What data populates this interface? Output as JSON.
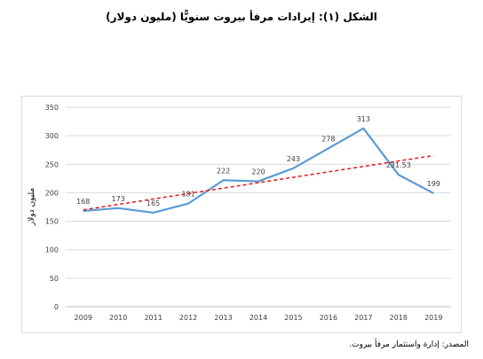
{
  "title": "الشكل (١): إيرادات مرفأ بيروت سنويًّا (مليون دولار)",
  "source": "المصدر: إدارة واستثمار مرفأ بيروت.",
  "chart_data": {
    "type": "line",
    "title": "",
    "xlabel": "",
    "ylabel": "مليون دولار",
    "categories": [
      "2009",
      "2010",
      "2011",
      "2012",
      "2013",
      "2014",
      "2015",
      "2016",
      "2017",
      "2018",
      "2019"
    ],
    "series": [
      {
        "values": [
          168,
          173,
          165,
          181,
          222,
          220,
          243,
          278,
          313,
          231.53,
          199
        ],
        "labels": [
          "168",
          "173",
          "165",
          "181",
          "222",
          "220",
          "243",
          "278",
          "313",
          "231.53",
          "199"
        ],
        "color": "#5b9bd5"
      }
    ],
    "trendline": {
      "type": "linear",
      "color": "#e31a1c",
      "style": "dashed"
    },
    "ylim": [
      0,
      350
    ],
    "yticks": [
      0,
      50,
      100,
      150,
      200,
      250,
      300,
      350
    ],
    "grid": true,
    "legend": "none"
  }
}
